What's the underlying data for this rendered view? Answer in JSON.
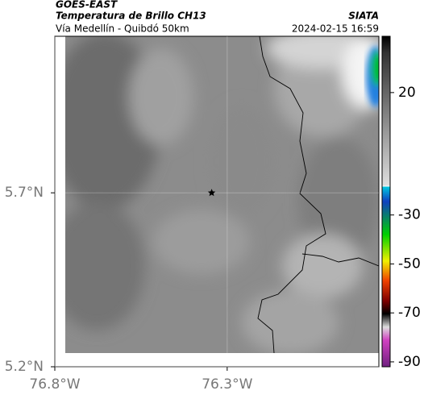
{
  "header": {
    "product": "GOES-EAST",
    "title": "Temperatura de Brillo CH13",
    "source": "SIATA",
    "subtitle": "Vía Medellín - Quibdó 50km",
    "datetime": "2024-02-15 16:59"
  },
  "map": {
    "xlim": [
      -76.8,
      -75.86
    ],
    "ylim": [
      5.2,
      6.15
    ],
    "xticks": [
      {
        "value": -76.8,
        "label": "76.8°W"
      },
      {
        "value": -76.3,
        "label": "76.3°W"
      }
    ],
    "yticks": [
      {
        "value": 5.7,
        "label": "5.7°N"
      },
      {
        "value": 5.2,
        "label": "5.2°N"
      }
    ],
    "grid": true,
    "station": {
      "lon": -76.345,
      "lat": 5.7
    }
  },
  "colorbar": {
    "lim": [
      -92,
      43
    ],
    "ticks": [
      20,
      -30,
      -50,
      -70,
      -90
    ]
  }
}
